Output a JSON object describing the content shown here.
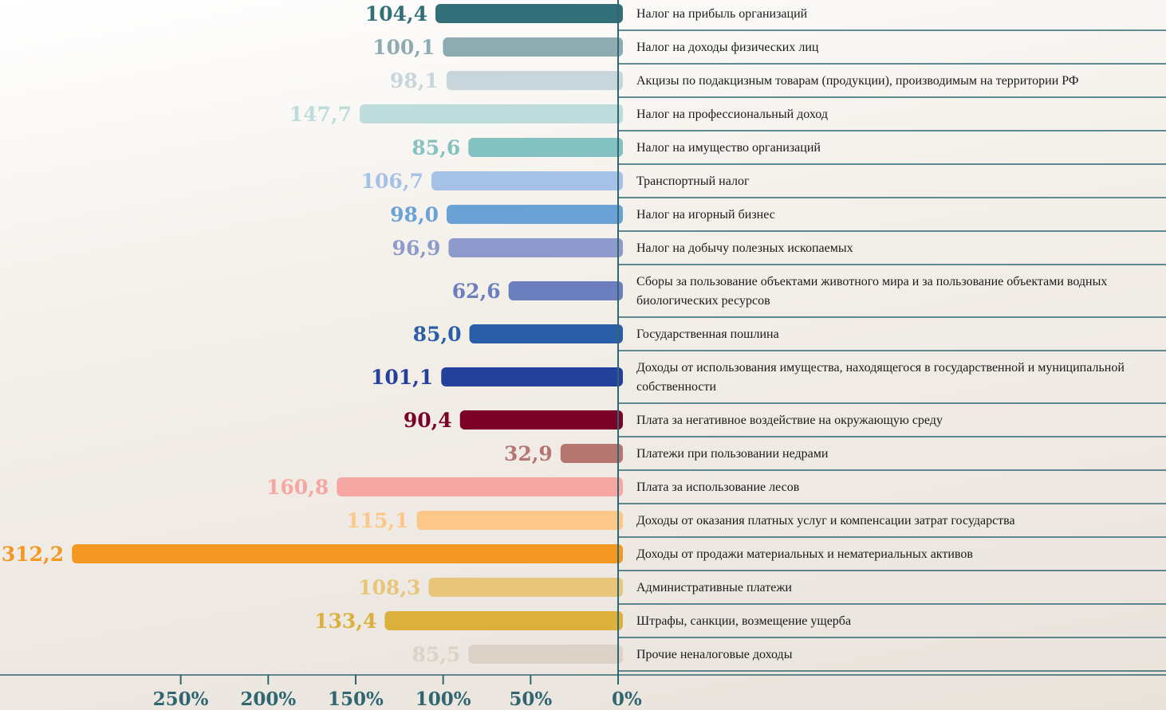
{
  "chart_data": {
    "type": "bar",
    "orientation": "horizontal",
    "categories": [
      "Налог на прибыль организаций",
      "Налог на доходы физических лиц",
      "Акцизы по подакцизным товарам (продукции), производимым на территории РФ",
      "Налог на профессиональный доход",
      "Налог на имущество организаций",
      "Транспортный налог",
      "Налог на игорный бизнес",
      "Налог на добычу полезных ископаемых",
      "Сборы за пользование объектами животного мира и за пользование объектами водных биологических ресурсов",
      "Государственная пошлина",
      "Доходы от использования имущества, находящегося в государственной и муниципальной собственности",
      "Плата за негативное воздействие на окружающую среду",
      "Платежи при пользовании недрами",
      "Плата за использование лесов",
      "Доходы от оказания платных услуг и компенсации затрат государства",
      "Доходы от продажи материальных и нематериальных активов",
      "Административные платежи",
      "Штрафы, санкции, возмещение ущерба",
      "Прочие неналоговые доходы"
    ],
    "values": [
      104.4,
      100.1,
      98.1,
      147.7,
      85.6,
      106.7,
      98.0,
      96.9,
      62.6,
      85.0,
      101.1,
      90.4,
      32.9,
      160.8,
      115.1,
      312.2,
      108.3,
      133.4,
      85.5
    ],
    "value_labels": [
      "104,4",
      "100,1",
      "98,1",
      "147,7",
      "85,6",
      "106,7",
      "98,0",
      "96,9",
      "62,6",
      "85,0",
      "101,1",
      "90,4",
      "32,9",
      "160,8",
      "115,1",
      "312,2",
      "108,3",
      "133,4",
      "85,5"
    ],
    "colors": [
      "#336f78",
      "#8eabb1",
      "#c8d5da",
      "#bedcdc",
      "#84c1c1",
      "#a5c2e6",
      "#6aa2d6",
      "#8e9acc",
      "#6b7fbf",
      "#2b5ea8",
      "#23409a",
      "#7b0128",
      "#b57570",
      "#f7a7a1",
      "#fbc88a",
      "#f39822",
      "#e7c57a",
      "#dbb03c",
      "#dcd2c7"
    ],
    "xlim": [
      0,
      310
    ],
    "xticks": [
      {
        "value": 250,
        "label": "250%"
      },
      {
        "value": 200,
        "label": "200%"
      },
      {
        "value": 150,
        "label": "150%"
      },
      {
        "value": 100,
        "label": "100%"
      },
      {
        "value": 50,
        "label": "50%"
      },
      {
        "value": 0,
        "label": "0%"
      }
    ]
  }
}
